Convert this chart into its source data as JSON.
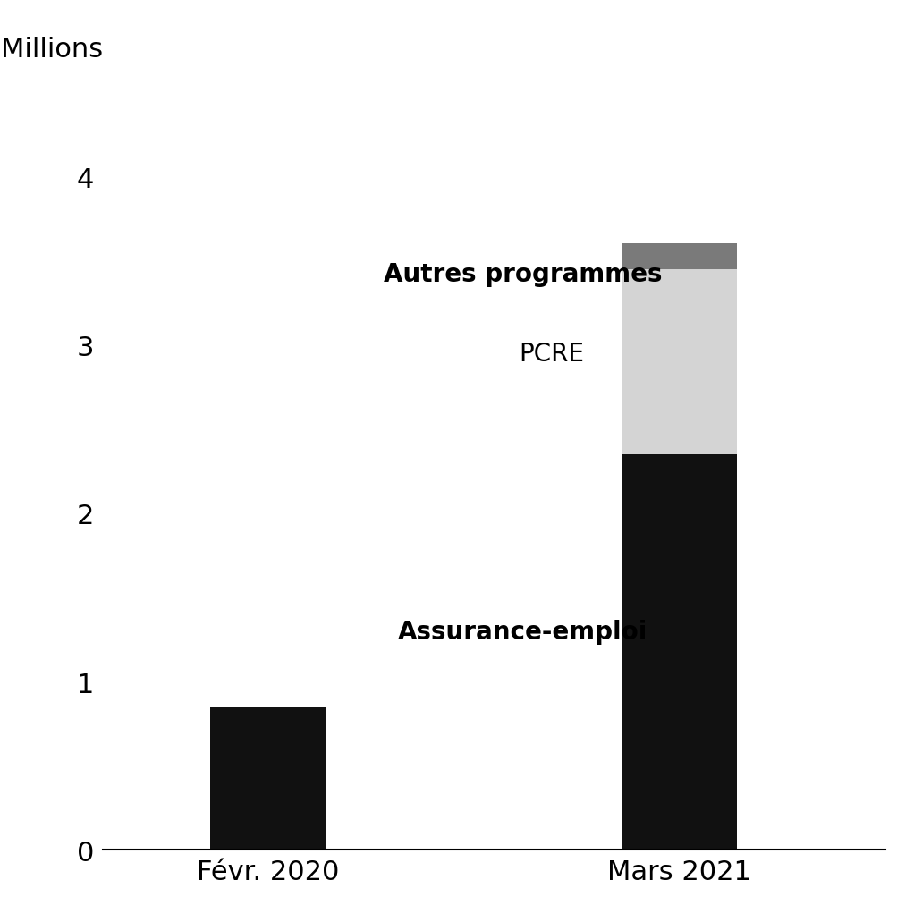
{
  "categories": [
    "Févr. 2020",
    "Mars 2021"
  ],
  "assurance_emploi": [
    0.85,
    2.35
  ],
  "pcre": [
    0.0,
    1.1
  ],
  "autres": [
    0.0,
    0.15
  ],
  "colors": {
    "assurance_emploi": "#111111",
    "pcre": "#d4d4d4",
    "autres": "#7a7a7a"
  },
  "ylabel": "Millions",
  "ylim": [
    0,
    4.5
  ],
  "yticks": [
    0,
    1,
    2,
    3,
    4
  ],
  "bar_width": 0.28,
  "background_color": "#ffffff",
  "figsize": [
    10.04,
    10.04
  ],
  "dpi": 100,
  "tick_fontsize": 22,
  "annotation_fontsize": 20
}
